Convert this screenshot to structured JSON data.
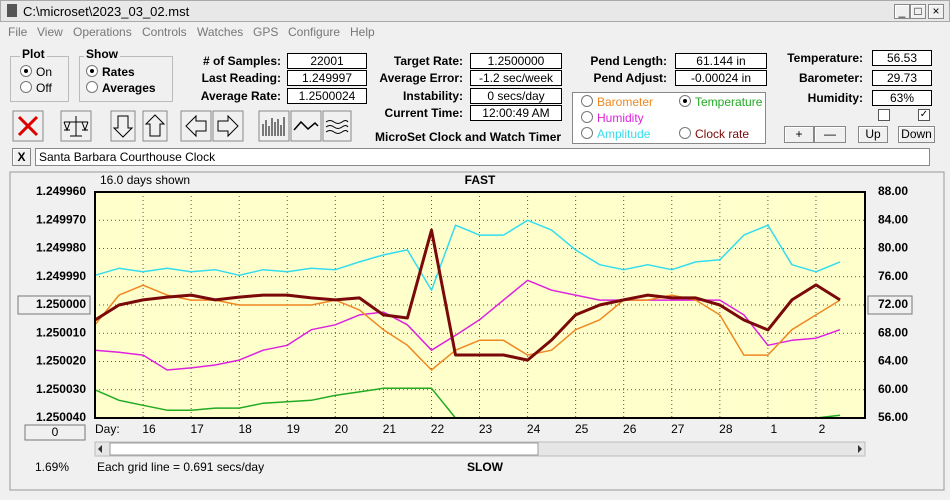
{
  "ui": {
    "window_title": "C:\\microset\\2023_03_02.mst",
    "menu": [
      "File",
      "View",
      "Operations",
      "Controls",
      "Watches",
      "GPS",
      "Configure",
      "Help"
    ],
    "plot_group": {
      "title": "Plot",
      "options": [
        "On",
        "Off"
      ]
    },
    "show_group": {
      "title": "Show",
      "options": [
        "Rates",
        "Averages"
      ]
    },
    "readouts": [
      {
        "label": "# of Samples:",
        "value": "22001"
      },
      {
        "label": "Last Reading:",
        "value": "1.249997"
      },
      {
        "label": "Average Rate:",
        "value": "1.2500024"
      },
      {
        "label": "Target Rate:",
        "value": "1.2500000"
      },
      {
        "label": "Average Error:",
        "value": "-1.2 sec/week"
      },
      {
        "label": "Instability:",
        "value": "0 secs/day"
      },
      {
        "label": "Current Time:",
        "value": "12:00:49 AM"
      },
      {
        "label": "Pend Length:",
        "value": "61.144 in"
      },
      {
        "label": "Pend Adjust:",
        "value": "-0.00024 in"
      },
      {
        "label": "Temperature:",
        "value": "56.53"
      },
      {
        "label": "Barometer:",
        "value": "29.73"
      },
      {
        "label": "Humidity:",
        "value": "63%"
      }
    ],
    "app_title": "MicroSet Clock and Watch Timer",
    "buttons": [
      "+",
      "—",
      "Up",
      "Down"
    ],
    "close_button": "X",
    "clock_name": "Santa Barbara Courthouse Clock"
  },
  "chart_data": {
    "type": "line",
    "annotations": {
      "days_shown": "16.0 days shown",
      "top": "FAST",
      "bottom": "SLOW",
      "grid_note": "Each grid line = 0.691 secs/day",
      "percent": "1.69%",
      "offset": "0",
      "day_label": "Day:"
    },
    "categories": [
      null,
      null,
      "16",
      null,
      "17",
      null,
      "18",
      null,
      "19",
      null,
      "20",
      null,
      "21",
      null,
      "22",
      null,
      "23",
      null,
      "24",
      null,
      "25",
      null,
      "26",
      null,
      "27",
      null,
      "28",
      null,
      "1",
      null,
      "2",
      null
    ],
    "ylim": [
      1.25004,
      1.24996
    ],
    "yticks": [
      {
        "value": 1.24996,
        "label": "1.249960"
      },
      {
        "value": 1.24997,
        "label": "1.249970"
      },
      {
        "value": 1.24998,
        "label": "1.249980"
      },
      {
        "value": 1.24999,
        "label": "1.249990"
      },
      {
        "value": 1.25,
        "label": "1.250000"
      },
      {
        "value": 1.25001,
        "label": "1.250010"
      },
      {
        "value": 1.25002,
        "label": "1.250020"
      },
      {
        "value": 1.25003,
        "label": "1.250030"
      },
      {
        "value": 1.25004,
        "label": "1.250040"
      }
    ],
    "y2lim": [
      56,
      88
    ],
    "y2ticks": [
      {
        "value": 88,
        "label": "88.00"
      },
      {
        "value": 84,
        "label": "84.00"
      },
      {
        "value": 80,
        "label": "80.00"
      },
      {
        "value": 76,
        "label": "76.00"
      },
      {
        "value": 72,
        "label": "72.00"
      },
      {
        "value": 68,
        "label": "68.00"
      },
      {
        "value": 64,
        "label": "64.00"
      },
      {
        "value": 60,
        "label": "60.00"
      },
      {
        "value": 56,
        "label": "56.00"
      }
    ],
    "grid": true,
    "series": [
      {
        "name": "Temperature",
        "color": "#22aa22",
        "axis": "y2",
        "values": [
          60.0,
          58.5,
          57.8,
          57.1,
          57.1,
          57.4,
          57.4,
          58.1,
          58.3,
          58.5,
          59.2,
          59.7,
          60.2,
          60.2,
          60.2,
          56.0,
          56.0,
          56.0,
          56.0,
          56.0,
          56.0,
          56.0,
          56.0,
          56.0,
          56.0,
          56.0,
          56.0,
          56.0,
          56.0,
          56.0,
          56.0,
          56.4
        ]
      },
      {
        "name": "Humidity",
        "color": "#dd22dd",
        "axis": "y2",
        "values": [
          65.6,
          65.3,
          64.9,
          62.8,
          63.1,
          63.5,
          64.2,
          65.6,
          66.3,
          68.5,
          69.2,
          70.6,
          71.0,
          69.2,
          65.6,
          67.7,
          69.9,
          72.7,
          75.5,
          74.1,
          73.4,
          72.7,
          72.7,
          72.7,
          72.7,
          72.7,
          72.7,
          70.6,
          66.3,
          67.0,
          67.3,
          68.5
        ]
      },
      {
        "name": "Barometer",
        "color": "#ee8822",
        "axis": "y2",
        "values": [
          69.2,
          73.4,
          74.8,
          73.4,
          72.7,
          72.7,
          72.0,
          72.0,
          72.0,
          72.0,
          72.7,
          71.3,
          68.5,
          66.3,
          62.8,
          65.6,
          67.0,
          67.0,
          64.9,
          65.6,
          68.5,
          69.9,
          72.7,
          72.7,
          73.4,
          72.7,
          70.6,
          64.9,
          64.9,
          68.5,
          70.6,
          72.7
        ]
      },
      {
        "name": "Amplitude",
        "color": "#33ddee",
        "axis": "y2",
        "values": [
          76.2,
          77.2,
          76.7,
          77.2,
          76.7,
          77.0,
          76.2,
          77.0,
          76.7,
          77.2,
          77.0,
          78.1,
          79.1,
          79.8,
          74.1,
          83.3,
          81.9,
          81.9,
          84.0,
          82.6,
          79.8,
          77.7,
          77.0,
          77.7,
          77.0,
          78.1,
          78.4,
          81.9,
          83.3,
          77.7,
          76.7,
          78.1
        ]
      },
      {
        "name": "Clock rate",
        "color": "#7a0a0a",
        "values": [
          1.2500053,
          1.25,
          1.2499982,
          1.2499972,
          1.2499965,
          1.2499982,
          1.2499972,
          1.2499965,
          1.2499965,
          1.2499975,
          1.2499982,
          1.2499975,
          1.2500035,
          1.2500046,
          1.2499735,
          1.2500177,
          1.2500177,
          1.2500177,
          1.2500195,
          1.2500124,
          1.2500035,
          1.25,
          1.2499982,
          1.2499965,
          1.2499975,
          1.2499975,
          1.25,
          1.2500053,
          1.2500088,
          1.2499982,
          1.2499929,
          1.2499982
        ]
      }
    ]
  }
}
